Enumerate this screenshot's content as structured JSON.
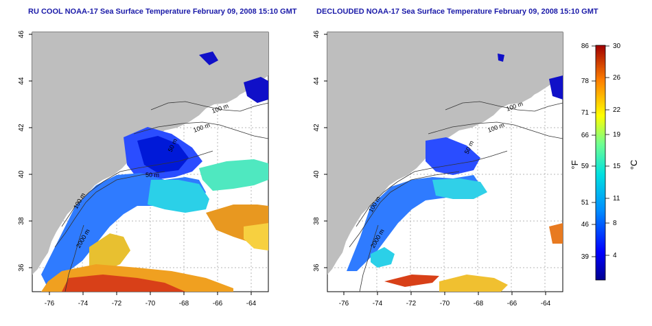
{
  "panels": [
    {
      "title": "RU COOL NOAA-17 Sea Surface Temperature February 09, 2008 15:10 GMT",
      "lat_ticks": [
        "46",
        "44",
        "42",
        "40",
        "38",
        "36"
      ],
      "lon_ticks": [
        "-76",
        "-74",
        "-72",
        "-70",
        "-68",
        "-66",
        "-64"
      ],
      "contour_labels": [
        "100 m",
        "100 m",
        "50 m",
        "50 m",
        "100 m",
        "2000 m"
      ]
    },
    {
      "title": "DECLOUDED NOAA-17 Sea Surface Temperature February 09, 2008 15:10 GMT",
      "lat_ticks": [
        "46",
        "44",
        "42",
        "40",
        "38",
        "36"
      ],
      "lon_ticks": [
        "-76",
        "-74",
        "-72",
        "-70",
        "-68",
        "-66",
        "-64"
      ],
      "contour_labels": [
        "100 m",
        "100 m",
        "50 m",
        "2000 m",
        "100 m"
      ]
    }
  ],
  "colorbar": {
    "fahrenheit_label": "°F",
    "celsius_label": "°C",
    "fahrenheit_ticks": [
      "86",
      "78",
      "71",
      "66",
      "59",
      "51",
      "46",
      "39"
    ],
    "celsius_ticks": [
      "30",
      "26",
      "22",
      "19",
      "15",
      "11",
      "8",
      "4"
    ]
  },
  "colors": {
    "land": "#bebebe",
    "title": "#1a1aa8",
    "cold": "#0000aa",
    "warm": "#cc2200"
  }
}
